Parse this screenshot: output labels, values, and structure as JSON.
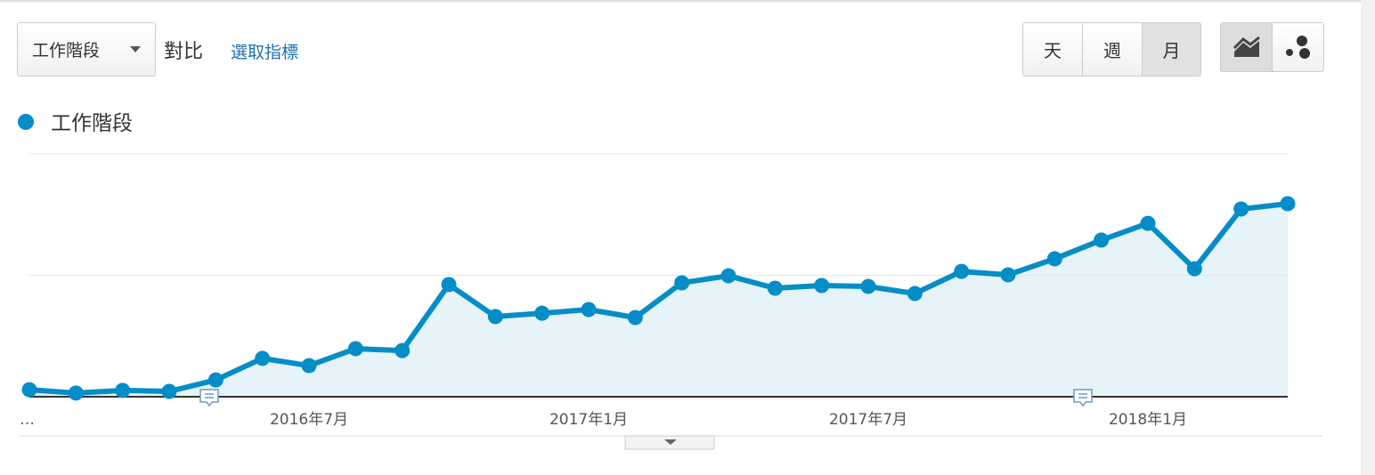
{
  "controls": {
    "dropdown": "工作階段",
    "compare": "對比",
    "select_metric": "選取指標",
    "period_buttons": [
      "天",
      "週",
      "月"
    ]
  },
  "chart_data": {
    "type": "line",
    "categories": [
      "…",
      null,
      null,
      null,
      null,
      null,
      "2016年7月",
      null,
      null,
      null,
      null,
      null,
      "2017年1月",
      null,
      null,
      null,
      null,
      null,
      "2017年7月",
      null,
      null,
      null,
      null,
      null,
      "2018年1月",
      null,
      null,
      null
    ],
    "series": [
      {
        "name": "工作階段",
        "color": "#058dc7",
        "values": [
          2.9,
          1.5,
          2.6,
          2.2,
          6.9,
          15.8,
          12.8,
          19.8,
          19.0,
          46.2,
          33.0,
          34.4,
          35.9,
          32.6,
          46.9,
          49.8,
          44.7,
          45.8,
          45.4,
          42.5,
          51.6,
          50.2,
          56.8,
          64.5,
          71.4,
          52.7,
          77.3,
          79.5
        ]
      }
    ],
    "ylim": [
      0,
      100
    ],
    "yticks": [
      0,
      50,
      100
    ],
    "grid": true,
    "area": true
  }
}
